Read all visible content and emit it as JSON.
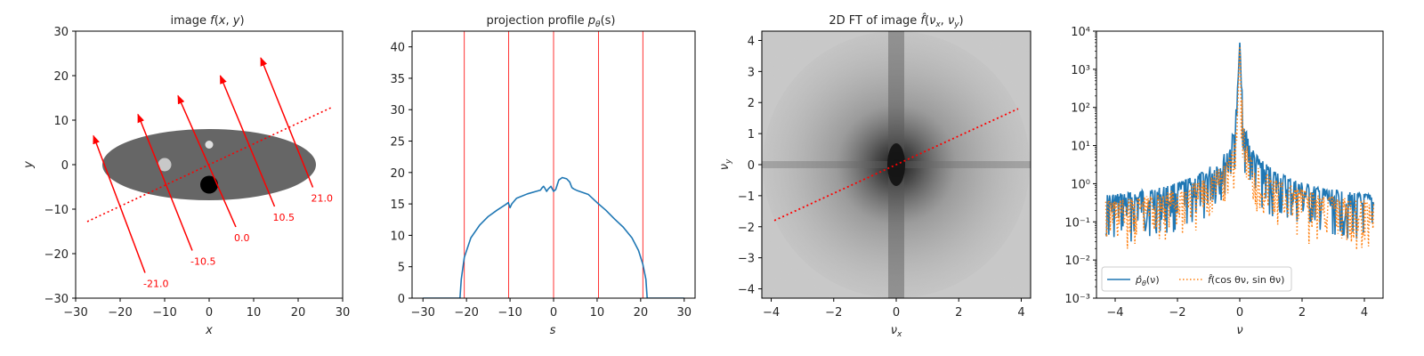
{
  "chart_data": [
    {
      "type": "image",
      "title": "image f(x, y)",
      "xlabel": "x",
      "ylabel": "y",
      "xlim": [
        -30,
        30
      ],
      "ylim": [
        -30,
        30
      ],
      "xticks": [
        -30,
        -20,
        -10,
        0,
        10,
        20,
        30
      ],
      "yticks": [
        -30,
        -20,
        -10,
        0,
        10,
        20,
        30
      ],
      "ellipse": {
        "center": [
          0,
          0
        ],
        "rx": 24,
        "ry": 8,
        "color": "#666666"
      },
      "discs": [
        {
          "center": [
            -10,
            0
          ],
          "r": 1.5,
          "color": "#c8c8c8"
        },
        {
          "center": [
            0,
            4.5
          ],
          "r": 0.9,
          "color": "#e0e0e0"
        },
        {
          "center": [
            0,
            -4.5
          ],
          "r": 2.0,
          "color": "#000000"
        }
      ],
      "projection_line": {
        "from": [
          -27.4,
          -12.8
        ],
        "to": [
          27.4,
          12.8
        ],
        "style": "dotted",
        "color": "#ff0000"
      },
      "rays": [
        {
          "s": -21.0,
          "label": "-21.0",
          "from": [
            -14.4,
            -24.3
          ],
          "to": [
            -26.0,
            6.5
          ]
        },
        {
          "s": -10.5,
          "label": "-10.5",
          "from": [
            -3.8,
            -19.3
          ],
          "to": [
            -16.0,
            11.3
          ]
        },
        {
          "s": 0.0,
          "label": "0.0",
          "from": [
            6.0,
            -14.0
          ],
          "to": [
            -7.0,
            15.5
          ]
        },
        {
          "s": 10.5,
          "label": "10.5",
          "from": [
            14.7,
            -9.4
          ],
          "to": [
            2.5,
            20.0
          ]
        },
        {
          "s": 21.0,
          "label": "21.0",
          "from": [
            23.3,
            -5.1
          ],
          "to": [
            11.6,
            24.0
          ]
        }
      ]
    },
    {
      "type": "line",
      "title": "projection profile p_θ(s)",
      "title_pre": "projection profile ",
      "title_math": "p",
      "title_sub": "θ",
      "title_post": "(s)",
      "xlabel": "s",
      "ylabel": "",
      "xlim": [
        -32.5,
        32.5
      ],
      "ylim": [
        0,
        42.5
      ],
      "xticks": [
        -30,
        -20,
        -10,
        0,
        10,
        20,
        30
      ],
      "yticks": [
        0,
        5,
        10,
        15,
        20,
        25,
        30,
        35,
        40
      ],
      "vlines": [
        -20.5,
        -10.3,
        0,
        10.3,
        20.5
      ],
      "vline_color": "#ff0000",
      "series": [
        {
          "color": "#1f77b4",
          "x": [
            -30,
            -21.5,
            -21.2,
            -20.5,
            -19,
            -17,
            -15,
            -13,
            -11,
            -10.4,
            -10,
            -9.6,
            -8.5,
            -6,
            -4,
            -3,
            -2.6,
            -2.3,
            -2,
            -1.6,
            -1.2,
            -0.6,
            0,
            0.5,
            1.2,
            2,
            3,
            3.7,
            4.2,
            4.6,
            5.5,
            8,
            10,
            12,
            14,
            16,
            18,
            19.5,
            20.5,
            21.2,
            21.5,
            30
          ],
          "y": [
            0,
            0,
            3,
            6.5,
            9.6,
            11.6,
            13.0,
            14.0,
            14.9,
            15.2,
            14.4,
            15.0,
            15.9,
            16.6,
            17.0,
            17.2,
            17.6,
            17.8,
            17.5,
            17.0,
            17.4,
            17.8,
            17.0,
            17.3,
            18.8,
            19.2,
            19.0,
            18.5,
            17.6,
            17.4,
            17.1,
            16.5,
            15.2,
            14.0,
            12.6,
            11.3,
            9.6,
            7.6,
            5.4,
            3.0,
            0,
            0
          ]
        }
      ]
    },
    {
      "type": "heatmap",
      "title": "2D FT of image f̂(ν_x, ν_y)",
      "title_pre": "2D FT of image ",
      "xlabel": "ν_x",
      "ylabel": "ν_y",
      "xlim": [
        -4.3,
        4.3
      ],
      "ylim": [
        -4.3,
        4.3
      ],
      "xticks": [
        -4,
        -2,
        0,
        2,
        4
      ],
      "yticks": [
        -4,
        -3,
        -2,
        -1,
        0,
        1,
        2,
        3,
        4
      ],
      "slice_line": {
        "from": [
          -3.9,
          -1.8
        ],
        "to": [
          3.9,
          1.8
        ],
        "style": "dotted",
        "color": "#ff0000"
      }
    },
    {
      "type": "line",
      "title": "",
      "xlabel": "ν",
      "ylabel": "",
      "xlim": [
        -4.6,
        4.6
      ],
      "ylim": [
        0.001,
        10000
      ],
      "yscale": "log",
      "xticks": [
        -4,
        -2,
        0,
        2,
        4
      ],
      "yticks": [
        "10⁻³",
        "10⁻²",
        "10⁻¹",
        "10⁰",
        "10¹",
        "10²",
        "10³",
        "10⁴"
      ],
      "legend_position": "lower-left",
      "series": [
        {
          "name": "p̂_θ(ν)",
          "legend_math": "p̂",
          "legend_sub": "θ",
          "legend_post": "(ν)",
          "color": "#1f77b4",
          "style": "solid",
          "x": [
            -4.3,
            -3.5,
            -2.5,
            -1.8,
            -1.2,
            -0.8,
            -0.5,
            -0.3,
            -0.15,
            -0.05,
            0,
            0.05,
            0.15,
            0.3,
            0.5,
            0.8,
            1.2,
            1.8,
            2.5,
            3.5,
            4.3
          ],
          "y": [
            0.5,
            0.6,
            0.8,
            1.2,
            2.0,
            3.5,
            6,
            12,
            40,
            600,
            5000,
            600,
            40,
            12,
            6,
            3.5,
            2.0,
            1.2,
            0.8,
            0.6,
            0.5
          ]
        },
        {
          "name": "f̂(cos θ ν, sin θ ν)",
          "legend_math": "f̂",
          "legend_post": "(cos θν, sin θν)",
          "color": "#ff7f0e",
          "style": "dotted",
          "x": [
            -4.3,
            -3.5,
            -2.5,
            -1.8,
            -1.2,
            -0.8,
            -0.5,
            -0.3,
            -0.15,
            -0.05,
            0,
            0.05,
            0.15,
            0.3,
            0.5,
            0.8,
            1.2,
            1.8,
            2.5,
            3.5,
            4.3
          ],
          "y": [
            0.35,
            0.4,
            0.55,
            0.8,
            1.2,
            2.0,
            3.0,
            6,
            20,
            300,
            4000,
            300,
            20,
            6,
            3.0,
            2.0,
            1.2,
            0.8,
            0.55,
            0.4,
            0.35
          ]
        }
      ]
    }
  ]
}
